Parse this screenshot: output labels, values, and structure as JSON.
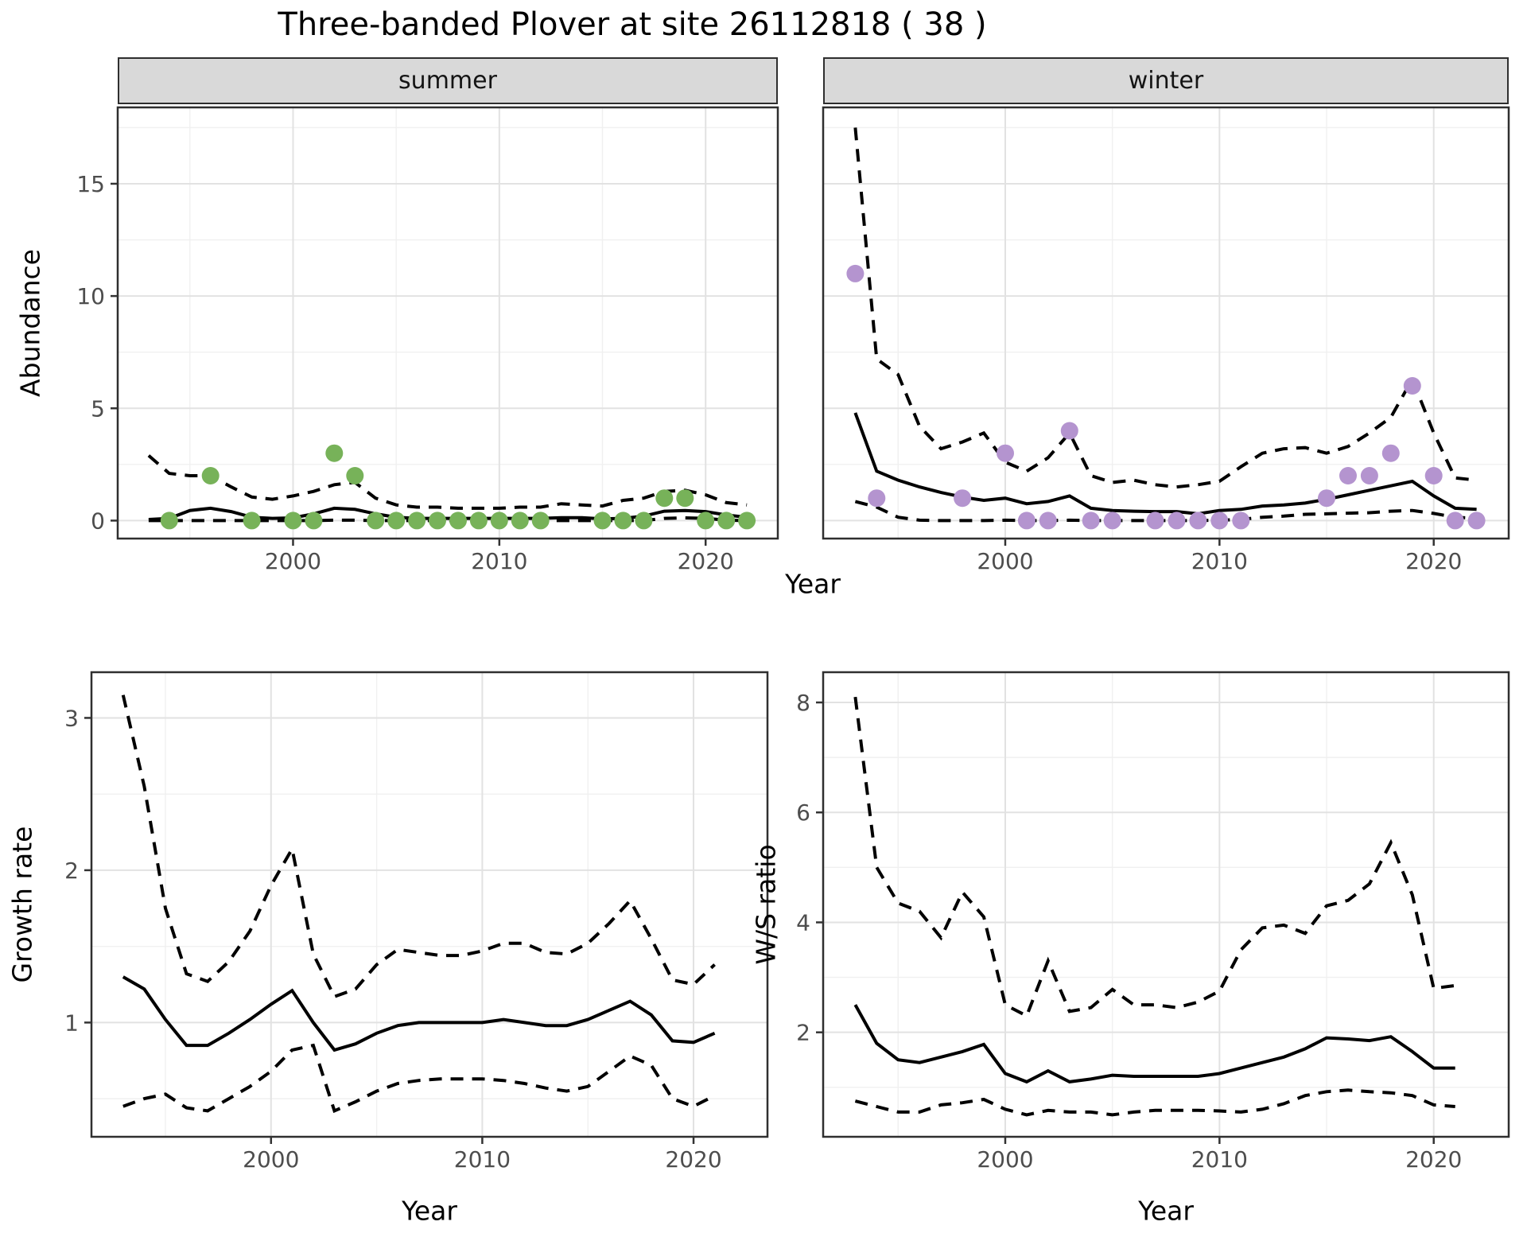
{
  "title": "Three-banded Plover at site 26112818 ( 38 )",
  "facets": {
    "summer": "summer",
    "winter": "winter"
  },
  "axis_labels": {
    "y_abundance": "Abundance",
    "x_year": "Year",
    "y_growth": "Growth rate",
    "y_ratio": "W/S ratio"
  },
  "colors": {
    "summer_point": "#77B259",
    "winter_point": "#B494CF",
    "line": "#000000",
    "strip_bg": "#D9D9D9",
    "grid_major": "#E2E2E2",
    "grid_minor": "#F0F0F0",
    "panel_border": "#2F2F2F",
    "tick_text": "#4D4D4D"
  },
  "chart_data": [
    {
      "name": "summer-abundance",
      "type": "line",
      "facet": "summer",
      "xlabel": "Year",
      "ylabel": "Abundance",
      "xlim": [
        1991.5,
        2023.5
      ],
      "ylim": [
        -0.8,
        18.4
      ],
      "x_ticks": [
        2000,
        2010,
        2020
      ],
      "y_ticks": [
        0,
        5,
        10,
        15
      ],
      "x_minor": [
        1995,
        2005,
        2015
      ],
      "y_minor": [
        2.5,
        7.5,
        12.5,
        17.5
      ],
      "x": [
        1993,
        1994,
        1995,
        1996,
        1997,
        1998,
        1999,
        2000,
        2001,
        2002,
        2003,
        2004,
        2005,
        2006,
        2007,
        2008,
        2009,
        2010,
        2011,
        2012,
        2013,
        2014,
        2015,
        2016,
        2017,
        2018,
        2019,
        2020,
        2021,
        2022
      ],
      "series": [
        {
          "name": "median",
          "style": "solid",
          "values": [
            0.05,
            0.1,
            0.45,
            0.55,
            0.4,
            0.15,
            0.1,
            0.12,
            0.3,
            0.55,
            0.5,
            0.3,
            0.15,
            0.1,
            0.1,
            0.1,
            0.1,
            0.1,
            0.1,
            0.1,
            0.13,
            0.13,
            0.08,
            0.1,
            0.2,
            0.42,
            0.45,
            0.4,
            0.25,
            0.15
          ]
        },
        {
          "name": "ci_upper",
          "style": "dashed",
          "values": [
            2.9,
            2.1,
            2.0,
            2.0,
            1.5,
            1.05,
            0.95,
            1.1,
            1.3,
            1.6,
            1.7,
            1.0,
            0.7,
            0.6,
            0.6,
            0.55,
            0.55,
            0.55,
            0.6,
            0.6,
            0.75,
            0.7,
            0.65,
            0.9,
            1.0,
            1.3,
            1.35,
            1.15,
            0.8,
            0.7
          ]
        },
        {
          "name": "ci_lower",
          "style": "dashed",
          "values": [
            0,
            0,
            0,
            0,
            0,
            0,
            0,
            0,
            0,
            0.02,
            0.02,
            0,
            0,
            0,
            0,
            0,
            0,
            0,
            0,
            0,
            0,
            0,
            0,
            0,
            0,
            0.1,
            0.12,
            0.1,
            0.02,
            0
          ]
        }
      ],
      "points": {
        "name": "observed-counts-summer",
        "color": "#77B259",
        "x": [
          1994,
          1996,
          1998,
          2000,
          2001,
          2002,
          2003,
          2004,
          2005,
          2006,
          2007,
          2008,
          2009,
          2010,
          2011,
          2012,
          2015,
          2016,
          2017,
          2018,
          2019,
          2020,
          2021,
          2022
        ],
        "y": [
          0,
          2,
          0,
          0,
          0,
          3,
          2,
          0,
          0,
          0,
          0,
          0,
          0,
          0,
          0,
          0,
          0,
          0,
          0,
          1,
          1,
          0,
          0,
          0
        ]
      }
    },
    {
      "name": "winter-abundance",
      "type": "line",
      "facet": "winter",
      "xlabel": "Year",
      "ylabel": "Abundance",
      "xlim": [
        1991.5,
        2023.5
      ],
      "ylim": [
        -0.8,
        18.4
      ],
      "x_ticks": [
        2000,
        2010,
        2020
      ],
      "y_ticks": [
        0,
        5,
        10,
        15
      ],
      "x_minor": [
        1995,
        2005,
        2015
      ],
      "y_minor": [
        2.5,
        7.5,
        12.5,
        17.5
      ],
      "x": [
        1993,
        1994,
        1995,
        1996,
        1997,
        1998,
        1999,
        2000,
        2001,
        2002,
        2003,
        2004,
        2005,
        2006,
        2007,
        2008,
        2009,
        2010,
        2011,
        2012,
        2013,
        2014,
        2015,
        2016,
        2017,
        2018,
        2019,
        2020,
        2021,
        2022
      ],
      "series": [
        {
          "name": "median",
          "style": "solid",
          "values": [
            4.8,
            2.2,
            1.8,
            1.5,
            1.25,
            1.05,
            0.9,
            1.0,
            0.75,
            0.85,
            1.1,
            0.55,
            0.45,
            0.42,
            0.4,
            0.4,
            0.3,
            0.45,
            0.5,
            0.65,
            0.7,
            0.78,
            0.95,
            1.15,
            1.35,
            1.55,
            1.75,
            1.1,
            0.55,
            0.5
          ]
        },
        {
          "name": "ci_upper",
          "style": "dashed",
          "values": [
            17.5,
            7.2,
            6.5,
            4.2,
            3.2,
            3.5,
            3.9,
            2.6,
            2.2,
            2.8,
            3.9,
            2.0,
            1.7,
            1.8,
            1.6,
            1.5,
            1.6,
            1.75,
            2.4,
            3.0,
            3.2,
            3.25,
            3.0,
            3.3,
            3.9,
            4.6,
            6.3,
            3.9,
            1.9,
            1.8
          ]
        },
        {
          "name": "ci_lower",
          "style": "dashed",
          "values": [
            0.85,
            0.6,
            0.15,
            0.02,
            0,
            0,
            0,
            0.02,
            0,
            0,
            0.02,
            0,
            0,
            0,
            0,
            0,
            0,
            0.02,
            0.05,
            0.15,
            0.2,
            0.28,
            0.3,
            0.33,
            0.35,
            0.42,
            0.45,
            0.32,
            0.15,
            0.1
          ]
        }
      ],
      "points": {
        "name": "observed-counts-winter",
        "color": "#B494CF",
        "x": [
          1993,
          1994,
          1998,
          2000,
          2001,
          2002,
          2003,
          2004,
          2005,
          2007,
          2008,
          2009,
          2010,
          2011,
          2015,
          2016,
          2017,
          2018,
          2019,
          2020,
          2021,
          2022
        ],
        "y": [
          11,
          1,
          1,
          3,
          0,
          0,
          4,
          0,
          0,
          0,
          0,
          0,
          0,
          0,
          1,
          2,
          2,
          3,
          6,
          2,
          0,
          0
        ]
      }
    },
    {
      "name": "growth-rate",
      "type": "line",
      "xlabel": "Year",
      "ylabel": "Growth rate",
      "xlim": [
        1991.5,
        2023.5
      ],
      "ylim": [
        0.25,
        3.3
      ],
      "x_ticks": [
        2000,
        2010,
        2020
      ],
      "y_ticks": [
        1,
        2,
        3
      ],
      "x_minor": [
        1995,
        2005,
        2015
      ],
      "y_minor": [
        0.5,
        1.5,
        2.5
      ],
      "x": [
        1993,
        1994,
        1995,
        1996,
        1997,
        1998,
        1999,
        2000,
        2001,
        2002,
        2003,
        2004,
        2005,
        2006,
        2007,
        2008,
        2009,
        2010,
        2011,
        2012,
        2013,
        2014,
        2015,
        2016,
        2017,
        2018,
        2019,
        2020,
        2021
      ],
      "series": [
        {
          "name": "median",
          "style": "solid",
          "values": [
            1.3,
            1.22,
            1.02,
            0.85,
            0.85,
            0.93,
            1.02,
            1.12,
            1.21,
            1.0,
            0.82,
            0.86,
            0.93,
            0.98,
            1.0,
            1.0,
            1.0,
            1.0,
            1.02,
            1.0,
            0.98,
            0.98,
            1.02,
            1.08,
            1.14,
            1.05,
            0.88,
            0.87,
            0.93
          ]
        },
        {
          "name": "ci_upper",
          "style": "dashed",
          "values": [
            3.15,
            2.55,
            1.75,
            1.32,
            1.27,
            1.4,
            1.6,
            1.9,
            2.14,
            1.45,
            1.17,
            1.22,
            1.38,
            1.48,
            1.46,
            1.44,
            1.44,
            1.47,
            1.52,
            1.52,
            1.46,
            1.45,
            1.52,
            1.65,
            1.8,
            1.55,
            1.28,
            1.25,
            1.38
          ]
        },
        {
          "name": "ci_lower",
          "style": "dashed",
          "values": [
            0.45,
            0.5,
            0.53,
            0.44,
            0.42,
            0.5,
            0.58,
            0.68,
            0.82,
            0.85,
            0.42,
            0.48,
            0.55,
            0.6,
            0.62,
            0.63,
            0.63,
            0.63,
            0.62,
            0.6,
            0.57,
            0.55,
            0.58,
            0.68,
            0.78,
            0.72,
            0.5,
            0.45,
            0.52
          ]
        }
      ]
    },
    {
      "name": "ws-ratio",
      "type": "line",
      "xlabel": "Year",
      "ylabel": "W/S ratio",
      "xlim": [
        1991.5,
        2023.5
      ],
      "ylim": [
        0.1,
        8.55
      ],
      "x_ticks": [
        2000,
        2010,
        2020
      ],
      "y_ticks": [
        2,
        4,
        6,
        8
      ],
      "x_minor": [
        1995,
        2005,
        2015
      ],
      "y_minor": [
        1,
        3,
        5,
        7
      ],
      "x": [
        1993,
        1994,
        1995,
        1996,
        1997,
        1998,
        1999,
        2000,
        2001,
        2002,
        2003,
        2004,
        2005,
        2006,
        2007,
        2008,
        2009,
        2010,
        2011,
        2012,
        2013,
        2014,
        2015,
        2016,
        2017,
        2018,
        2019,
        2020,
        2021
      ],
      "series": [
        {
          "name": "median",
          "style": "solid",
          "values": [
            2.5,
            1.8,
            1.5,
            1.45,
            1.55,
            1.65,
            1.78,
            1.25,
            1.1,
            1.3,
            1.1,
            1.15,
            1.22,
            1.2,
            1.2,
            1.2,
            1.2,
            1.25,
            1.35,
            1.45,
            1.55,
            1.7,
            1.9,
            1.88,
            1.85,
            1.92,
            1.65,
            1.35,
            1.35
          ]
        },
        {
          "name": "ci_upper",
          "style": "dashed",
          "values": [
            8.1,
            5.0,
            4.35,
            4.2,
            3.72,
            4.55,
            4.1,
            2.5,
            2.3,
            3.3,
            2.38,
            2.45,
            2.78,
            2.5,
            2.5,
            2.45,
            2.55,
            2.75,
            3.5,
            3.9,
            3.95,
            3.8,
            4.3,
            4.4,
            4.7,
            5.45,
            4.5,
            2.8,
            2.85
          ]
        },
        {
          "name": "ci_lower",
          "style": "dashed",
          "values": [
            0.75,
            0.65,
            0.55,
            0.55,
            0.68,
            0.72,
            0.78,
            0.6,
            0.5,
            0.58,
            0.55,
            0.55,
            0.5,
            0.55,
            0.58,
            0.58,
            0.58,
            0.57,
            0.55,
            0.6,
            0.7,
            0.85,
            0.92,
            0.95,
            0.92,
            0.9,
            0.85,
            0.68,
            0.65
          ]
        }
      ]
    }
  ]
}
